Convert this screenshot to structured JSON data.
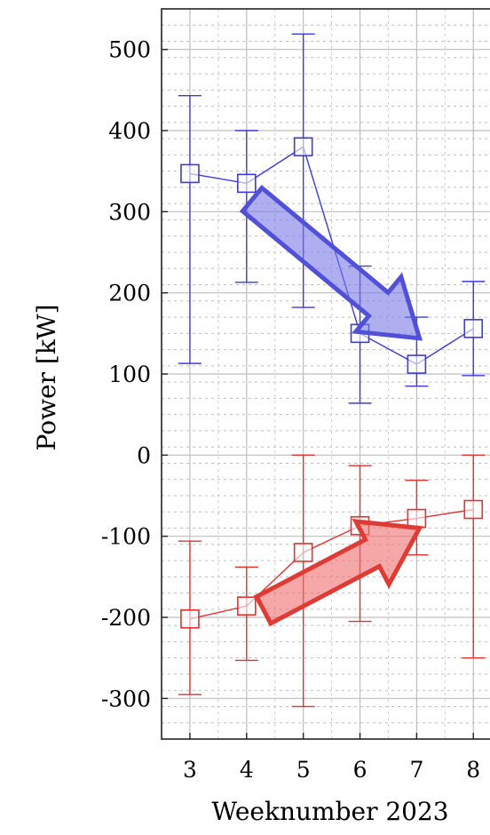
{
  "chart_data": {
    "type": "line",
    "xlabel": "Weeknumber 2023",
    "ylabel": "Power [kW]",
    "x": [
      3,
      4,
      5,
      6,
      7,
      8
    ],
    "xlim": [
      2.5,
      8.45
    ],
    "ylim": [
      -350,
      550
    ],
    "x_ticks": [
      "3",
      "4",
      "5",
      "6",
      "7",
      "8"
    ],
    "y_ticks": [
      "500",
      "400",
      "300",
      "200",
      "100",
      "0",
      "-100",
      "-200",
      "-300"
    ],
    "y_tick_values": [
      500,
      400,
      300,
      200,
      100,
      0,
      -100,
      -200,
      -300
    ],
    "grid": true,
    "series": [
      {
        "color": "#3a3ae0",
        "marker": "square",
        "values": [
          347,
          335,
          380,
          150,
          112,
          156
        ],
        "err_low": [
          113,
          213,
          182,
          64,
          85,
          98
        ],
        "err_high": [
          443,
          400,
          519,
          233,
          170,
          214
        ],
        "trend_arrow": "down"
      },
      {
        "color": "#e8302c",
        "marker": "square",
        "values": [
          -202,
          -186,
          -120,
          -87,
          -78,
          -67
        ],
        "err_low": [
          -295,
          -253,
          -310,
          -205,
          -123,
          -250
        ],
        "err_high": [
          -106,
          -138,
          0,
          -13,
          -31,
          0
        ],
        "trend_arrow": "up"
      }
    ]
  }
}
